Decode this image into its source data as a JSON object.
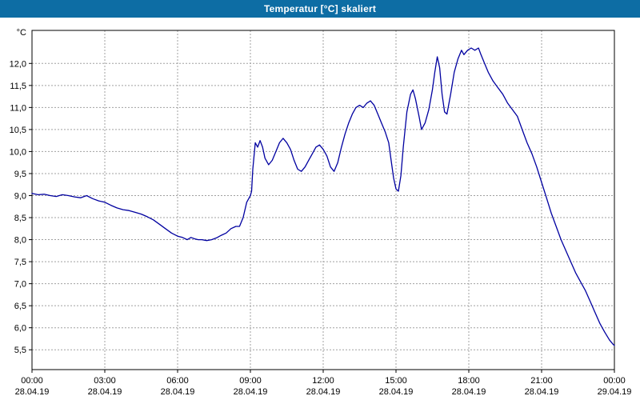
{
  "window": {
    "title": "Temperatur [°C] skaliert"
  },
  "chart_data": {
    "type": "line",
    "title": "Temperatur [°C] skaliert",
    "xlabel": "",
    "ylabel": "°C",
    "line_color": "#0000a0",
    "grid_color": "#a0a0a0",
    "grid": "on",
    "legend_position": "none",
    "ylim": [
      5.05,
      12.75
    ],
    "xlim": [
      0,
      24
    ],
    "y_ticks": [
      {
        "value": 12.0,
        "label": "12,0"
      },
      {
        "value": 11.5,
        "label": "11,5"
      },
      {
        "value": 11.0,
        "label": "11,0"
      },
      {
        "value": 10.5,
        "label": "10,5"
      },
      {
        "value": 10.0,
        "label": "10,0"
      },
      {
        "value": 9.5,
        "label": "9,5"
      },
      {
        "value": 9.0,
        "label": "9,0"
      },
      {
        "value": 8.5,
        "label": "8,5"
      },
      {
        "value": 8.0,
        "label": "8,0"
      },
      {
        "value": 7.5,
        "label": "7,5"
      },
      {
        "value": 7.0,
        "label": "7,0"
      },
      {
        "value": 6.5,
        "label": "6,5"
      },
      {
        "value": 6.0,
        "label": "6,0"
      },
      {
        "value": 5.5,
        "label": "5,5"
      }
    ],
    "x_ticks": [
      {
        "hour": 0,
        "time": "00:00",
        "date": "28.04.19"
      },
      {
        "hour": 3,
        "time": "03:00",
        "date": "28.04.19"
      },
      {
        "hour": 6,
        "time": "06:00",
        "date": "28.04.19"
      },
      {
        "hour": 9,
        "time": "09:00",
        "date": "28.04.19"
      },
      {
        "hour": 12,
        "time": "12:00",
        "date": "28.04.19"
      },
      {
        "hour": 15,
        "time": "15:00",
        "date": "28.04.19"
      },
      {
        "hour": 18,
        "time": "18:00",
        "date": "28.04.19"
      },
      {
        "hour": 21,
        "time": "21:00",
        "date": "28.04.19"
      },
      {
        "hour": 24,
        "time": "00:00",
        "date": "29.04.19"
      }
    ],
    "series": [
      {
        "name": "Temperatur",
        "points": [
          [
            0,
            9.05
          ],
          [
            0.25,
            9.02
          ],
          [
            0.5,
            9.03
          ],
          [
            0.75,
            9.0
          ],
          [
            1,
            8.98
          ],
          [
            1.25,
            9.02
          ],
          [
            1.5,
            9.0
          ],
          [
            1.75,
            8.97
          ],
          [
            2,
            8.95
          ],
          [
            2.25,
            9.0
          ],
          [
            2.5,
            8.93
          ],
          [
            2.75,
            8.88
          ],
          [
            3,
            8.85
          ],
          [
            3.25,
            8.78
          ],
          [
            3.5,
            8.72
          ],
          [
            3.75,
            8.68
          ],
          [
            4,
            8.66
          ],
          [
            4.25,
            8.62
          ],
          [
            4.5,
            8.58
          ],
          [
            4.75,
            8.52
          ],
          [
            5,
            8.45
          ],
          [
            5.25,
            8.35
          ],
          [
            5.5,
            8.25
          ],
          [
            5.75,
            8.15
          ],
          [
            6,
            8.08
          ],
          [
            6.2,
            8.05
          ],
          [
            6.4,
            8.0
          ],
          [
            6.55,
            8.05
          ],
          [
            6.7,
            8.02
          ],
          [
            6.85,
            8.0
          ],
          [
            7,
            8.0
          ],
          [
            7.2,
            7.98
          ],
          [
            7.4,
            8.0
          ],
          [
            7.6,
            8.04
          ],
          [
            7.8,
            8.1
          ],
          [
            8,
            8.15
          ],
          [
            8.2,
            8.25
          ],
          [
            8.4,
            8.3
          ],
          [
            8.55,
            8.3
          ],
          [
            8.7,
            8.5
          ],
          [
            8.85,
            8.85
          ],
          [
            8.95,
            8.95
          ],
          [
            9.0,
            9.0
          ],
          [
            9.05,
            9.1
          ],
          [
            9.1,
            9.6
          ],
          [
            9.2,
            10.2
          ],
          [
            9.3,
            10.1
          ],
          [
            9.4,
            10.25
          ],
          [
            9.5,
            10.1
          ],
          [
            9.6,
            9.85
          ],
          [
            9.75,
            9.7
          ],
          [
            9.9,
            9.8
          ],
          [
            10.05,
            10.0
          ],
          [
            10.2,
            10.2
          ],
          [
            10.35,
            10.3
          ],
          [
            10.5,
            10.2
          ],
          [
            10.65,
            10.05
          ],
          [
            10.8,
            9.8
          ],
          [
            10.95,
            9.6
          ],
          [
            11.1,
            9.55
          ],
          [
            11.25,
            9.65
          ],
          [
            11.4,
            9.8
          ],
          [
            11.55,
            9.95
          ],
          [
            11.7,
            10.1
          ],
          [
            11.85,
            10.15
          ],
          [
            12,
            10.05
          ],
          [
            12.15,
            9.9
          ],
          [
            12.3,
            9.65
          ],
          [
            12.45,
            9.55
          ],
          [
            12.6,
            9.75
          ],
          [
            12.75,
            10.1
          ],
          [
            12.9,
            10.4
          ],
          [
            13.05,
            10.65
          ],
          [
            13.2,
            10.85
          ],
          [
            13.35,
            11.0
          ],
          [
            13.5,
            11.05
          ],
          [
            13.65,
            11.0
          ],
          [
            13.8,
            11.1
          ],
          [
            13.95,
            11.15
          ],
          [
            14.1,
            11.05
          ],
          [
            14.25,
            10.85
          ],
          [
            14.4,
            10.65
          ],
          [
            14.55,
            10.45
          ],
          [
            14.7,
            10.2
          ],
          [
            14.8,
            9.8
          ],
          [
            14.9,
            9.4
          ],
          [
            15,
            9.15
          ],
          [
            15.1,
            9.1
          ],
          [
            15.2,
            9.45
          ],
          [
            15.3,
            10.1
          ],
          [
            15.45,
            10.9
          ],
          [
            15.6,
            11.3
          ],
          [
            15.7,
            11.4
          ],
          [
            15.8,
            11.2
          ],
          [
            15.95,
            10.8
          ],
          [
            16.05,
            10.5
          ],
          [
            16.2,
            10.65
          ],
          [
            16.35,
            10.95
          ],
          [
            16.5,
            11.4
          ],
          [
            16.6,
            11.8
          ],
          [
            16.7,
            12.15
          ],
          [
            16.8,
            11.9
          ],
          [
            16.9,
            11.3
          ],
          [
            17,
            10.9
          ],
          [
            17.1,
            10.85
          ],
          [
            17.25,
            11.3
          ],
          [
            17.4,
            11.8
          ],
          [
            17.55,
            12.1
          ],
          [
            17.7,
            12.3
          ],
          [
            17.8,
            12.2
          ],
          [
            17.95,
            12.3
          ],
          [
            18.1,
            12.35
          ],
          [
            18.25,
            12.3
          ],
          [
            18.4,
            12.35
          ],
          [
            18.5,
            12.2
          ],
          [
            18.65,
            12.0
          ],
          [
            18.8,
            11.8
          ],
          [
            19,
            11.6
          ],
          [
            19.2,
            11.45
          ],
          [
            19.4,
            11.3
          ],
          [
            19.6,
            11.1
          ],
          [
            19.8,
            10.95
          ],
          [
            20,
            10.8
          ],
          [
            20.2,
            10.5
          ],
          [
            20.4,
            10.2
          ],
          [
            20.6,
            9.95
          ],
          [
            20.8,
            9.65
          ],
          [
            21,
            9.3
          ],
          [
            21.2,
            8.95
          ],
          [
            21.4,
            8.6
          ],
          [
            21.6,
            8.3
          ],
          [
            21.8,
            8.0
          ],
          [
            22,
            7.75
          ],
          [
            22.2,
            7.5
          ],
          [
            22.4,
            7.25
          ],
          [
            22.6,
            7.05
          ],
          [
            22.8,
            6.85
          ],
          [
            23,
            6.6
          ],
          [
            23.2,
            6.35
          ],
          [
            23.4,
            6.1
          ],
          [
            23.6,
            5.9
          ],
          [
            23.8,
            5.72
          ],
          [
            23.95,
            5.62
          ],
          [
            24,
            5.6
          ]
        ]
      }
    ]
  }
}
